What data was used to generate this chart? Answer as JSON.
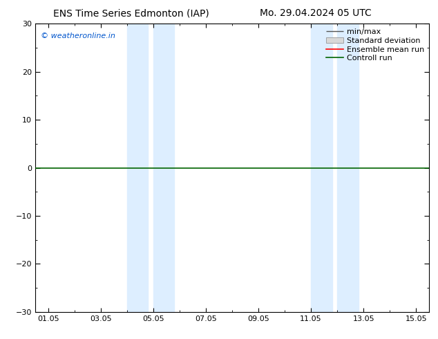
{
  "title_left": "ENS Time Series Edmonton (IAP)",
  "title_right": "Mo. 29.04.2024 05 UTC",
  "ylim": [
    -30,
    30
  ],
  "yticks": [
    -30,
    -20,
    -10,
    0,
    10,
    20,
    30
  ],
  "x_tick_labels": [
    "01.05",
    "03.05",
    "05.05",
    "07.05",
    "09.05",
    "11.05",
    "13.05",
    "15.05"
  ],
  "x_tick_positions": [
    0,
    2,
    4,
    6,
    8,
    10,
    12,
    14
  ],
  "xlim": [
    -0.5,
    14.5
  ],
  "shaded_bands": [
    {
      "x_start": 3.0,
      "x_end": 3.8,
      "color": "#ddeeff"
    },
    {
      "x_start": 4.0,
      "x_end": 4.8,
      "color": "#ddeeff"
    },
    {
      "x_start": 10.0,
      "x_end": 10.8,
      "color": "#ddeeff"
    },
    {
      "x_start": 11.0,
      "x_end": 11.8,
      "color": "#ddeeff"
    }
  ],
  "hline_y": 0,
  "hline_color": "#006400",
  "legend_labels": [
    "min/max",
    "Standard deviation",
    "Ensemble mean run",
    "Controll run"
  ],
  "legend_colors": [
    "#888888",
    "#cccccc",
    "#ff0000",
    "#006400"
  ],
  "watermark_text": "© weatheronline.in",
  "watermark_color": "#0055cc",
  "bg_color": "#ffffff",
  "plot_bg_color": "#ffffff",
  "title_fontsize": 10,
  "tick_fontsize": 8,
  "legend_fontsize": 8
}
